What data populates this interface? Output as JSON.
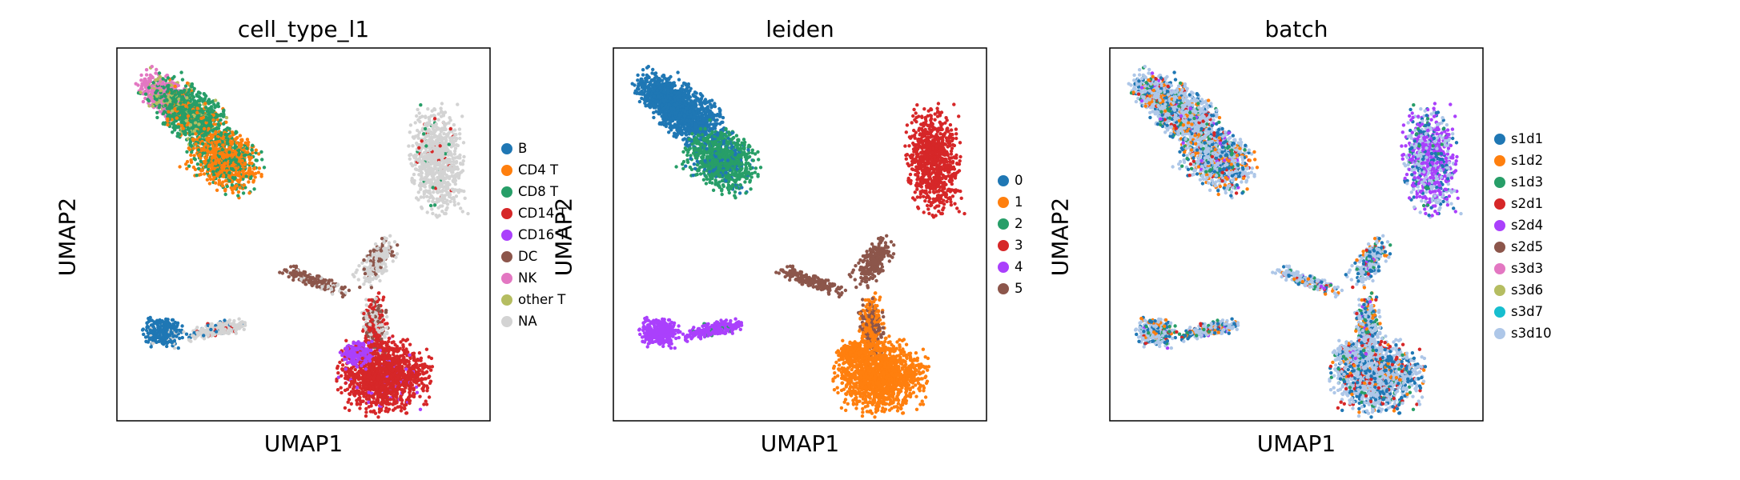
{
  "panels": [
    {
      "title": "cell_type_l1",
      "xlabel": "UMAP1",
      "ylabel": "UMAP2",
      "legend": [
        {
          "label": "B",
          "color": "#1f77b4"
        },
        {
          "label": "CD4 T",
          "color": "#ff7f0e"
        },
        {
          "label": "CD8 T",
          "color": "#279e68"
        },
        {
          "label": "CD14 T",
          "color": "#d62728"
        },
        {
          "label": "CD16 T",
          "color": "#aa40fc"
        },
        {
          "label": "DC",
          "color": "#8c564b"
        },
        {
          "label": "NK",
          "color": "#e377c2"
        },
        {
          "label": "other T",
          "color": "#b5bd61"
        },
        {
          "label": "NA",
          "color": "#d3d3d3"
        }
      ]
    },
    {
      "title": "leiden",
      "xlabel": "UMAP1",
      "ylabel": "UMAP2",
      "legend": [
        {
          "label": "0",
          "color": "#1f77b4"
        },
        {
          "label": "1",
          "color": "#ff7f0e"
        },
        {
          "label": "2",
          "color": "#279e68"
        },
        {
          "label": "3",
          "color": "#d62728"
        },
        {
          "label": "4",
          "color": "#aa40fc"
        },
        {
          "label": "5",
          "color": "#8c564b"
        }
      ]
    },
    {
      "title": "batch",
      "xlabel": "UMAP1",
      "ylabel": "UMAP2",
      "legend": [
        {
          "label": "s1d1",
          "color": "#1f77b4"
        },
        {
          "label": "s1d2",
          "color": "#ff7f0e"
        },
        {
          "label": "s1d3",
          "color": "#279e68"
        },
        {
          "label": "s2d1",
          "color": "#d62728"
        },
        {
          "label": "s2d4",
          "color": "#aa40fc"
        },
        {
          "label": "s2d5",
          "color": "#8c564b"
        },
        {
          "label": "s3d3",
          "color": "#e377c2"
        },
        {
          "label": "s3d6",
          "color": "#b5bd61"
        },
        {
          "label": "s3d7",
          "color": "#17becf"
        },
        {
          "label": "s3d10",
          "color": "#aec7e8"
        }
      ]
    }
  ],
  "chart_data": [
    {
      "type": "scatter",
      "title": "cell_type_l1",
      "xlabel": "UMAP1",
      "ylabel": "UMAP2",
      "grid": false,
      "ticks": "none",
      "legend_position": "right-outside",
      "categories": [
        "B",
        "CD4 T",
        "CD8 T",
        "CD14 T",
        "CD16 T",
        "DC",
        "NK",
        "other T",
        "NA"
      ],
      "clusters": [
        {
          "region": "upper-left elongated cluster",
          "composition": [
            "NK",
            "CD8 T",
            "CD4 T",
            "other T"
          ]
        },
        {
          "region": "upper-right cluster",
          "composition": [
            "NA",
            "CD14 T"
          ]
        },
        {
          "region": "lower-left small cluster",
          "composition": [
            "B",
            "NA"
          ]
        },
        {
          "region": "lower-center branching cluster",
          "composition": [
            "NA",
            "DC",
            "CD16 T",
            "CD14 T"
          ]
        }
      ]
    },
    {
      "type": "scatter",
      "title": "leiden",
      "xlabel": "UMAP1",
      "ylabel": "UMAP2",
      "grid": false,
      "ticks": "none",
      "legend_position": "right-outside",
      "categories": [
        "0",
        "1",
        "2",
        "3",
        "4",
        "5"
      ],
      "clusters": [
        {
          "region": "upper-left elongated cluster",
          "composition": [
            "0",
            "2"
          ]
        },
        {
          "region": "upper-right cluster",
          "composition": [
            "3"
          ]
        },
        {
          "region": "lower-left small cluster",
          "composition": [
            "4"
          ]
        },
        {
          "region": "lower-center branching cluster",
          "composition": [
            "5",
            "1"
          ]
        }
      ]
    },
    {
      "type": "scatter",
      "title": "batch",
      "xlabel": "UMAP1",
      "ylabel": "UMAP2",
      "grid": false,
      "ticks": "none",
      "legend_position": "right-outside",
      "categories": [
        "s1d1",
        "s1d2",
        "s1d3",
        "s2d1",
        "s2d4",
        "s2d5",
        "s3d3",
        "s3d6",
        "s3d7",
        "s3d10"
      ],
      "clusters": [
        {
          "region": "upper-left elongated cluster",
          "composition": [
            "s3d10",
            "s1d1",
            "s1d2",
            "s1d3"
          ]
        },
        {
          "region": "upper-right cluster",
          "composition": [
            "s2d4",
            "s1d1",
            "s3d10"
          ]
        },
        {
          "region": "lower-left small cluster",
          "composition": [
            "s3d10",
            "s1d1",
            "s2d4"
          ]
        },
        {
          "region": "lower-center branching cluster",
          "composition": [
            "s3d10",
            "s1d1",
            "s2d1",
            "s1d2"
          ]
        }
      ]
    }
  ]
}
